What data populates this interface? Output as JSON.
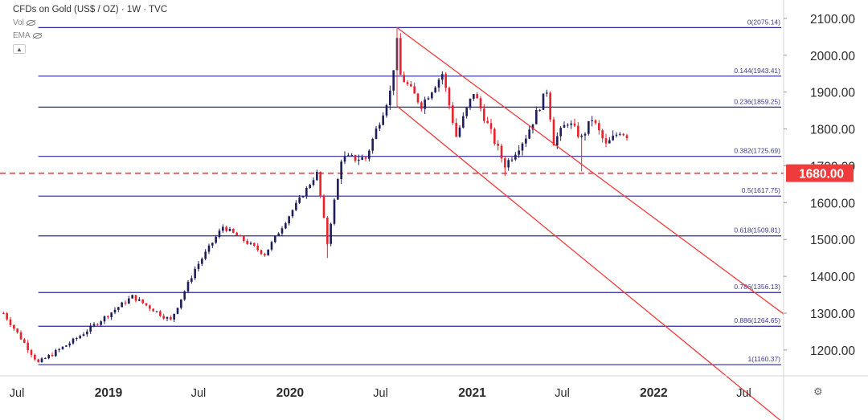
{
  "legend": {
    "title": "CFDs on Gold (US$ / OZ) · 1W · TVC",
    "vol_label": "Vol",
    "ema_label": "EMA",
    "collapse_icon": "chevron-up-icon"
  },
  "settings_icon": "gear-icon",
  "colors": {
    "up": "#1e1e5a",
    "down": "#e8212b",
    "fib_line": "#28289a",
    "channel": "#ef3b3b",
    "price_tag": "#ef3b3b"
  },
  "chart_data": {
    "type": "candlestick",
    "symbol": "CFDs on Gold (US$ / OZ)",
    "interval": "1W",
    "y_axis": {
      "ticks": [
        "2100.00",
        "2000.00",
        "1900.00",
        "1800.00",
        "1700.00",
        "1600.00",
        "1500.00",
        "1400.00",
        "1300.00",
        "1200.00"
      ],
      "ylim": [
        1130,
        2150
      ]
    },
    "x_axis": {
      "ticks": [
        "Jul",
        "2019",
        "Jul",
        "2020",
        "Jul",
        "2021",
        "Jul",
        "2022",
        "Jul"
      ],
      "xlim": [
        "2018-05-28",
        "2022-09-19"
      ]
    },
    "fib_levels": [
      {
        "label": "0(2075.14)",
        "value": 2075.14
      },
      {
        "label": "0.144(1943.41)",
        "value": 1943.41
      },
      {
        "label": "0.236(1859.25)",
        "value": 1859.25
      },
      {
        "label": "0.382(1725.69)",
        "value": 1725.69
      },
      {
        "label": "0.5(1617.75)",
        "value": 1617.75
      },
      {
        "label": "0.618(1509.81)",
        "value": 1509.81
      },
      {
        "label": "0.786(1356.13)",
        "value": 1356.13
      },
      {
        "label": "0.886(1264.65)",
        "value": 1264.65
      },
      {
        "label": "1(1160.37)",
        "value": 1160.37
      }
    ],
    "horizontal_line": {
      "value": 1680,
      "label": "1680.00",
      "style": "dashed"
    },
    "fib_start_date": "2018-08-13",
    "channel": [
      {
        "start": [
          "2020-08-03",
          2075
        ],
        "end": [
          "2022-09-19",
          1298
        ]
      },
      {
        "start": [
          "2020-08-03",
          1862
        ],
        "end": [
          "2022-09-19",
          1002
        ]
      }
    ],
    "key_points": [
      {
        "date": "2018-06-04",
        "price": 1300
      },
      {
        "date": "2018-08-13",
        "price": 1165
      },
      {
        "date": "2018-10-22",
        "price": 1225
      },
      {
        "date": "2019-02-18",
        "price": 1345
      },
      {
        "date": "2019-05-06",
        "price": 1280
      },
      {
        "date": "2019-06-24",
        "price": 1420
      },
      {
        "date": "2019-08-19",
        "price": 1535
      },
      {
        "date": "2019-11-11",
        "price": 1460
      },
      {
        "date": "2020-01-06",
        "price": 1580
      },
      {
        "date": "2020-02-24",
        "price": 1680
      },
      {
        "date": "2020-03-16",
        "price": 1490
      },
      {
        "date": "2020-04-13",
        "price": 1720
      },
      {
        "date": "2020-06-01",
        "price": 1720
      },
      {
        "date": "2020-07-20",
        "price": 1900
      },
      {
        "date": "2020-08-03",
        "price": 2035
      },
      {
        "date": "2020-08-10",
        "price": 1945
      },
      {
        "date": "2020-09-21",
        "price": 1865
      },
      {
        "date": "2020-11-02",
        "price": 1950
      },
      {
        "date": "2020-11-30",
        "price": 1780
      },
      {
        "date": "2021-01-04",
        "price": 1900
      },
      {
        "date": "2021-03-08",
        "price": 1700
      },
      {
        "date": "2021-04-19",
        "price": 1780
      },
      {
        "date": "2021-05-31",
        "price": 1905
      },
      {
        "date": "2021-06-14",
        "price": 1765
      },
      {
        "date": "2021-07-12",
        "price": 1820
      },
      {
        "date": "2021-08-09",
        "price": 1775
      },
      {
        "date": "2021-08-30",
        "price": 1828
      },
      {
        "date": "2021-09-27",
        "price": 1755
      },
      {
        "date": "2021-10-25",
        "price": 1795
      },
      {
        "date": "2021-11-08",
        "price": 1783
      }
    ]
  }
}
